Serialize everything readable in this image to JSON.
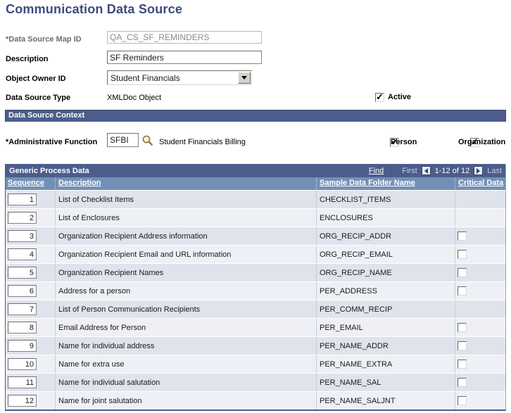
{
  "page": {
    "title": "Communication Data Source"
  },
  "fields": {
    "map_id": {
      "label": "*Data Source Map ID",
      "value": "QA_CS_SF_REMINDERS"
    },
    "description": {
      "label": "Description",
      "value": "SF Reminders"
    },
    "object_owner": {
      "label": "Object Owner ID",
      "value": "Student Financials"
    },
    "data_source_type": {
      "label": "Data Source Type",
      "value": "XMLDoc Object"
    },
    "active": {
      "label": "Active",
      "checked": true
    }
  },
  "context": {
    "header": "Data Source Context",
    "admin_function": {
      "label": "*Administrative Function",
      "code": "SFBI",
      "description": "Student Financials Billing"
    },
    "person": {
      "label": "Person",
      "checked": true
    },
    "organization": {
      "label": "Organization",
      "checked": true
    }
  },
  "grid": {
    "header": "Generic Process Data",
    "find_label": "Find",
    "first_label": "First",
    "range_label": "1-12 of 12",
    "last_label": "Last",
    "columns": [
      "Sequence",
      "Description",
      "Sample Data Folder Name",
      "Critical Data"
    ],
    "rows": [
      {
        "seq": "1",
        "desc": "List of Checklist Items",
        "folder": "CHECKLIST_ITEMS",
        "critical": null
      },
      {
        "seq": "2",
        "desc": "List of Enclosures",
        "folder": "ENCLOSURES",
        "critical": null
      },
      {
        "seq": "3",
        "desc": "Organization Recipient Address information",
        "folder": "ORG_RECIP_ADDR",
        "critical": false
      },
      {
        "seq": "4",
        "desc": "Organization Recipient Email and URL information",
        "folder": "ORG_RECIP_EMAIL",
        "critical": false
      },
      {
        "seq": "5",
        "desc": "Organization Recipient Names",
        "folder": "ORG_RECIP_NAME",
        "critical": false
      },
      {
        "seq": "6",
        "desc": "Address for a person",
        "folder": "PER_ADDRESS",
        "critical": false
      },
      {
        "seq": "7",
        "desc": "List of Person Communication Recipients",
        "folder": "PER_COMM_RECIP",
        "critical": null
      },
      {
        "seq": "8",
        "desc": "Email Address for Person",
        "folder": "PER_EMAIL",
        "critical": false
      },
      {
        "seq": "9",
        "desc": "Name for individual address",
        "folder": "PER_NAME_ADDR",
        "critical": false
      },
      {
        "seq": "10",
        "desc": "Name for extra use",
        "folder": "PER_NAME_EXTRA",
        "critical": false
      },
      {
        "seq": "11",
        "desc": "Name for individual salutation",
        "folder": "PER_NAME_SAL",
        "critical": false
      },
      {
        "seq": "12",
        "desc": "Name for joint salutation",
        "folder": "PER_NAME_SALJNT",
        "critical": false
      }
    ]
  },
  "colors": {
    "title": "#3e4c7d",
    "section_bar": "#4c5d8c",
    "column_header": "#7390b7",
    "row_odd": "#dfe3ec",
    "row_even": "#eef0f5"
  }
}
